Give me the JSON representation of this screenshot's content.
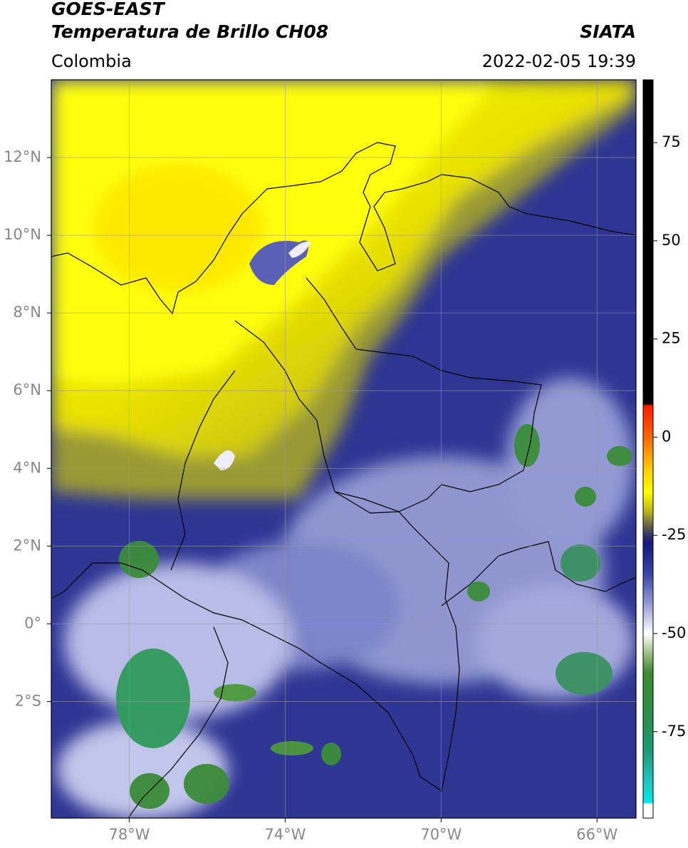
{
  "map": {
    "title": "GOES-EAST",
    "subtitle": "Temperatura de Brillo CH08",
    "source": "SIATA",
    "region": "Colombia",
    "datetime": "2022-02-05 19:39",
    "lon_lim": [
      -80,
      -65
    ],
    "lat_lim": [
      -5,
      14
    ],
    "lon_ticks": [
      {
        "value": -78,
        "label": "78°W"
      },
      {
        "value": -74,
        "label": "74°W"
      },
      {
        "value": -70,
        "label": "70°W"
      },
      {
        "value": -66,
        "label": "66°W"
      }
    ],
    "lat_ticks": [
      {
        "value": 12,
        "label": "12°N"
      },
      {
        "value": 10,
        "label": "10°N"
      },
      {
        "value": 8,
        "label": "8°N"
      },
      {
        "value": 6,
        "label": "6°N"
      },
      {
        "value": 4,
        "label": "4°N"
      },
      {
        "value": 2,
        "label": "2°N"
      },
      {
        "value": 0,
        "label": "0°"
      },
      {
        "value": -2,
        "label": "2°S"
      }
    ],
    "grid": true,
    "colorbar": {
      "lim": [
        -97,
        91
      ],
      "ticks": [
        75,
        50,
        25,
        0,
        -25,
        -50,
        -75
      ],
      "stops": [
        {
          "value": 91,
          "color": "#000000"
        },
        {
          "value": 8.5,
          "color": "#000000"
        },
        {
          "value": 8,
          "color": "#ff1a00"
        },
        {
          "value": 0,
          "color": "#ff6600"
        },
        {
          "value": -8,
          "color": "#ffcc00"
        },
        {
          "value": -14,
          "color": "#ffff00"
        },
        {
          "value": -19,
          "color": "#b5b520"
        },
        {
          "value": -23,
          "color": "#5a5a50"
        },
        {
          "value": -25.5,
          "color": "#2a2a6a"
        },
        {
          "value": -27,
          "color": "#141a80"
        },
        {
          "value": -35,
          "color": "#3b46a8"
        },
        {
          "value": -43,
          "color": "#9da3d8"
        },
        {
          "value": -50,
          "color": "#ffffff"
        },
        {
          "value": -55,
          "color": "#9cc08a"
        },
        {
          "value": -60,
          "color": "#3d8a2f"
        },
        {
          "value": -72,
          "color": "#2a8f4f"
        },
        {
          "value": -80,
          "color": "#1f9a7a"
        },
        {
          "value": -88,
          "color": "#1fc8c0"
        },
        {
          "value": -93,
          "color": "#00e8e8"
        },
        {
          "value": -93.5,
          "color": "#ffffff"
        },
        {
          "value": -97,
          "color": "#ffffff"
        }
      ]
    }
  }
}
